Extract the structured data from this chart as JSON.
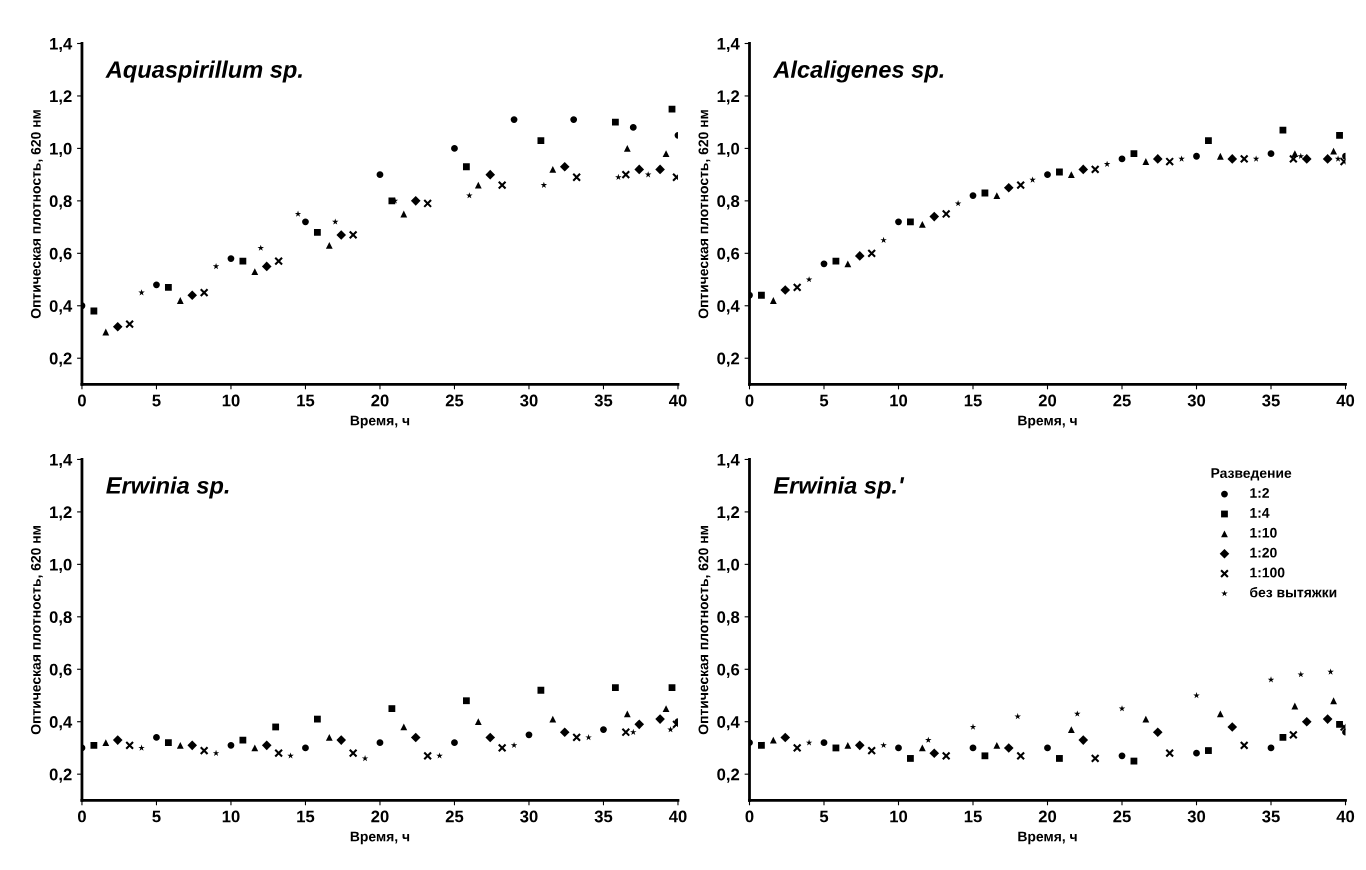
{
  "chart_data": [
    {
      "type": "scatter",
      "title": "Aquaspirillum sp.",
      "xlabel": "Время, ч",
      "ylabel": "Оптическая плотность, 620 нм",
      "xlim": [
        0,
        40
      ],
      "ylim": [
        0.1,
        1.4
      ],
      "xticks": [
        0,
        5,
        10,
        15,
        20,
        25,
        30,
        35,
        40
      ],
      "yticks": [
        {
          "value": 0.2,
          "label": "0,2"
        },
        {
          "value": 0.4,
          "label": "0,4"
        },
        {
          "value": 0.6,
          "label": "0,6"
        },
        {
          "value": 0.8,
          "label": "0,8"
        },
        {
          "value": 1.0,
          "label": "1,0"
        },
        {
          "value": 1.2,
          "label": "1,2"
        },
        {
          "value": 1.4,
          "label": "1,4"
        }
      ],
      "grid": false,
      "legend": false,
      "series": [
        {
          "color": "#000000",
          "marker": "circle",
          "x": [
            0,
            5,
            10,
            15,
            20,
            25,
            29,
            33,
            37,
            40
          ],
          "values": [
            0.4,
            0.48,
            0.58,
            0.72,
            0.9,
            1.0,
            1.11,
            1.11,
            1.08,
            1.05
          ]
        },
        {
          "color": "#000000",
          "marker": "square",
          "x": [
            0.8,
            5.8,
            10.8,
            15.8,
            20.8,
            25.8,
            30.8,
            35.8,
            39.6
          ],
          "values": [
            0.38,
            0.47,
            0.57,
            0.68,
            0.8,
            0.93,
            1.03,
            1.1,
            1.15
          ]
        },
        {
          "color": "#000000",
          "marker": "triangle",
          "x": [
            1.6,
            6.6,
            11.6,
            16.6,
            21.6,
            26.6,
            31.6,
            36.6,
            39.2
          ],
          "values": [
            0.3,
            0.42,
            0.53,
            0.63,
            0.75,
            0.86,
            0.92,
            1.0,
            0.98
          ]
        },
        {
          "color": "#000000",
          "marker": "diamond",
          "x": [
            2.4,
            7.4,
            12.4,
            17.4,
            22.4,
            27.4,
            32.4,
            37.4,
            38.8
          ],
          "values": [
            0.32,
            0.44,
            0.55,
            0.67,
            0.8,
            0.9,
            0.93,
            0.92,
            0.92
          ]
        },
        {
          "color": "#000000",
          "marker": "cross",
          "x": [
            3.2,
            8.2,
            13.2,
            18.2,
            23.2,
            28.2,
            33.2,
            36.5,
            39.9
          ],
          "values": [
            0.33,
            0.45,
            0.57,
            0.67,
            0.79,
            0.86,
            0.89,
            0.9,
            0.89
          ]
        },
        {
          "color": "#000000",
          "marker": "star",
          "x": [
            4,
            9,
            12,
            14.5,
            17,
            21,
            26,
            31,
            36,
            38
          ],
          "values": [
            0.45,
            0.55,
            0.62,
            0.75,
            0.72,
            0.8,
            0.82,
            0.86,
            0.89,
            0.9
          ]
        }
      ]
    },
    {
      "type": "scatter",
      "title": "Alcaligenes sp.",
      "xlabel": "Время, ч",
      "ylabel": "Оптическая плотность, 620 нм",
      "xlim": [
        0,
        40
      ],
      "ylim": [
        0.1,
        1.4
      ],
      "xticks": [
        0,
        5,
        10,
        15,
        20,
        25,
        30,
        35,
        40
      ],
      "yticks": [
        {
          "value": 0.2,
          "label": "0,2"
        },
        {
          "value": 0.4,
          "label": "0,4"
        },
        {
          "value": 0.6,
          "label": "0,6"
        },
        {
          "value": 0.8,
          "label": "0,8"
        },
        {
          "value": 1.0,
          "label": "1,0"
        },
        {
          "value": 1.2,
          "label": "1,2"
        },
        {
          "value": 1.4,
          "label": "1,4"
        }
      ],
      "grid": false,
      "legend": false,
      "series": [
        {
          "color": "#000000",
          "marker": "circle",
          "x": [
            0,
            5,
            10,
            15,
            20,
            25,
            30,
            35,
            40
          ],
          "values": [
            0.44,
            0.56,
            0.72,
            0.82,
            0.9,
            0.96,
            0.97,
            0.98,
            0.97
          ]
        },
        {
          "color": "#000000",
          "marker": "square",
          "x": [
            0.8,
            5.8,
            10.8,
            15.8,
            20.8,
            25.8,
            30.8,
            35.8,
            39.6
          ],
          "values": [
            0.44,
            0.57,
            0.72,
            0.83,
            0.91,
            0.98,
            1.03,
            1.07,
            1.05
          ]
        },
        {
          "color": "#000000",
          "marker": "triangle",
          "x": [
            1.6,
            6.6,
            11.6,
            16.6,
            21.6,
            26.6,
            31.6,
            36.6,
            39.2
          ],
          "values": [
            0.42,
            0.56,
            0.71,
            0.82,
            0.9,
            0.95,
            0.97,
            0.98,
            0.99
          ]
        },
        {
          "color": "#000000",
          "marker": "diamond",
          "x": [
            2.4,
            7.4,
            12.4,
            17.4,
            22.4,
            27.4,
            32.4,
            37.4,
            38.8
          ],
          "values": [
            0.46,
            0.59,
            0.74,
            0.85,
            0.92,
            0.96,
            0.96,
            0.96,
            0.96
          ]
        },
        {
          "color": "#000000",
          "marker": "cross",
          "x": [
            3.2,
            8.2,
            13.2,
            18.2,
            23.2,
            28.2,
            33.2,
            36.5,
            39.9
          ],
          "values": [
            0.47,
            0.6,
            0.75,
            0.86,
            0.92,
            0.95,
            0.96,
            0.96,
            0.95
          ]
        },
        {
          "color": "#000000",
          "marker": "star",
          "x": [
            4,
            9,
            14,
            19,
            24,
            29,
            34,
            37,
            39.5
          ],
          "values": [
            0.5,
            0.65,
            0.79,
            0.88,
            0.94,
            0.96,
            0.96,
            0.97,
            0.96
          ]
        }
      ]
    },
    {
      "type": "scatter",
      "title": "Erwinia sp.",
      "xlabel": "Время, ч",
      "ylabel": "Оптическая плотность, 620 нм",
      "xlim": [
        0,
        40
      ],
      "ylim": [
        0.1,
        1.4
      ],
      "xticks": [
        0,
        5,
        10,
        15,
        20,
        25,
        30,
        35,
        40
      ],
      "yticks": [
        {
          "value": 0.2,
          "label": "0,2"
        },
        {
          "value": 0.4,
          "label": "0,4"
        },
        {
          "value": 0.6,
          "label": "0,6"
        },
        {
          "value": 0.8,
          "label": "0,8"
        },
        {
          "value": 1.0,
          "label": "1,0"
        },
        {
          "value": 1.2,
          "label": "1,2"
        },
        {
          "value": 1.4,
          "label": "1,4"
        }
      ],
      "grid": false,
      "legend": false,
      "series": [
        {
          "color": "#000000",
          "marker": "circle",
          "x": [
            0,
            5,
            10,
            15,
            20,
            25,
            30,
            35,
            40
          ],
          "values": [
            0.3,
            0.34,
            0.31,
            0.3,
            0.32,
            0.32,
            0.35,
            0.37,
            0.4
          ]
        },
        {
          "color": "#000000",
          "marker": "square",
          "x": [
            0.8,
            5.8,
            10.8,
            13,
            15.8,
            20.8,
            25.8,
            30.8,
            35.8,
            39.6
          ],
          "values": [
            0.31,
            0.32,
            0.33,
            0.38,
            0.41,
            0.45,
            0.48,
            0.52,
            0.53,
            0.53
          ]
        },
        {
          "color": "#000000",
          "marker": "triangle",
          "x": [
            1.6,
            6.6,
            11.6,
            16.6,
            21.6,
            26.6,
            31.6,
            36.6,
            39.2
          ],
          "values": [
            0.32,
            0.31,
            0.3,
            0.34,
            0.38,
            0.4,
            0.41,
            0.43,
            0.45
          ]
        },
        {
          "color": "#000000",
          "marker": "diamond",
          "x": [
            2.4,
            7.4,
            12.4,
            17.4,
            22.4,
            27.4,
            32.4,
            37.4,
            38.8
          ],
          "values": [
            0.33,
            0.31,
            0.31,
            0.33,
            0.34,
            0.34,
            0.36,
            0.39,
            0.41
          ]
        },
        {
          "color": "#000000",
          "marker": "cross",
          "x": [
            3.2,
            8.2,
            13.2,
            18.2,
            23.2,
            28.2,
            33.2,
            36.5,
            39.9
          ],
          "values": [
            0.31,
            0.29,
            0.28,
            0.28,
            0.27,
            0.3,
            0.34,
            0.36,
            0.39
          ]
        },
        {
          "color": "#000000",
          "marker": "star",
          "x": [
            4,
            9,
            14,
            19,
            24,
            29,
            34,
            37,
            39.5
          ],
          "values": [
            0.3,
            0.28,
            0.27,
            0.26,
            0.27,
            0.31,
            0.34,
            0.36,
            0.37
          ]
        }
      ]
    },
    {
      "type": "scatter",
      "title": "Erwinia sp.'",
      "xlabel": "Время, ч",
      "ylabel": "Оптическая плотность, 620 нм",
      "legend_title": "Разведение",
      "xlim": [
        0,
        40
      ],
      "ylim": [
        0.1,
        1.4
      ],
      "xticks": [
        0,
        5,
        10,
        15,
        20,
        25,
        30,
        35,
        40
      ],
      "yticks": [
        {
          "value": 0.2,
          "label": "0,2"
        },
        {
          "value": 0.4,
          "label": "0,4"
        },
        {
          "value": 0.6,
          "label": "0,6"
        },
        {
          "value": 0.8,
          "label": "0,8"
        },
        {
          "value": 1.0,
          "label": "1,0"
        },
        {
          "value": 1.2,
          "label": "1,2"
        },
        {
          "value": 1.4,
          "label": "1,4"
        }
      ],
      "grid": false,
      "legend": "top right",
      "series": [
        {
          "name": "1:2",
          "color": "#000000",
          "marker": "circle",
          "x": [
            0,
            5,
            10,
            15,
            20,
            25,
            30,
            35,
            40
          ],
          "values": [
            0.32,
            0.32,
            0.3,
            0.3,
            0.3,
            0.27,
            0.28,
            0.3,
            0.36
          ]
        },
        {
          "name": "1:4",
          "color": "#000000",
          "marker": "square",
          "x": [
            0.8,
            5.8,
            10.8,
            15.8,
            20.8,
            25.8,
            30.8,
            35.8,
            39.6
          ],
          "values": [
            0.31,
            0.3,
            0.26,
            0.27,
            0.26,
            0.25,
            0.29,
            0.34,
            0.39
          ]
        },
        {
          "name": "1:10",
          "color": "#000000",
          "marker": "triangle",
          "x": [
            1.6,
            6.6,
            11.6,
            16.6,
            21.6,
            26.6,
            31.6,
            36.6,
            39.2
          ],
          "values": [
            0.33,
            0.31,
            0.3,
            0.31,
            0.37,
            0.41,
            0.43,
            0.46,
            0.48
          ]
        },
        {
          "name": "1:20",
          "color": "#000000",
          "marker": "diamond",
          "x": [
            2.4,
            7.4,
            12.4,
            17.4,
            22.4,
            27.4,
            32.4,
            37.4,
            38.8
          ],
          "values": [
            0.34,
            0.31,
            0.28,
            0.3,
            0.33,
            0.36,
            0.38,
            0.4,
            0.41
          ]
        },
        {
          "name": "1:100",
          "color": "#000000",
          "marker": "cross",
          "x": [
            3.2,
            8.2,
            13.2,
            18.2,
            23.2,
            28.2,
            33.2,
            36.5,
            39.9
          ],
          "values": [
            0.3,
            0.29,
            0.27,
            0.27,
            0.26,
            0.28,
            0.31,
            0.35,
            0.38
          ]
        },
        {
          "name": "без вытяжки",
          "color": "#000000",
          "marker": "star",
          "x": [
            4,
            9,
            12,
            15,
            18,
            22,
            25,
            30,
            35,
            37,
            39
          ],
          "values": [
            0.32,
            0.31,
            0.33,
            0.38,
            0.42,
            0.43,
            0.45,
            0.5,
            0.56,
            0.58,
            0.59
          ]
        }
      ]
    }
  ]
}
